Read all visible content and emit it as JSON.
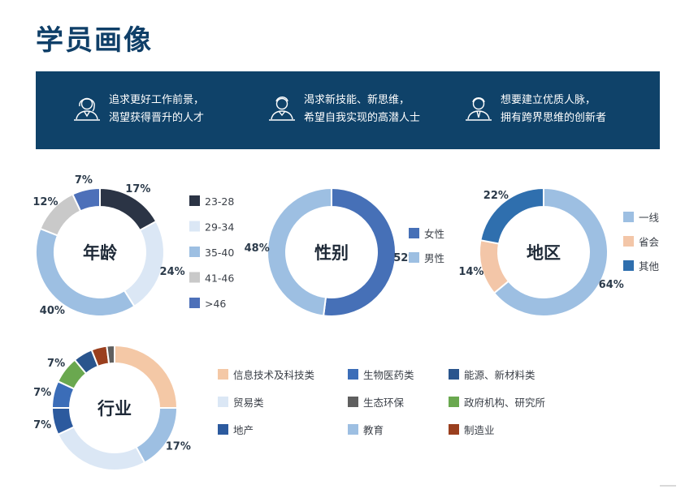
{
  "page": {
    "title": "学员画像"
  },
  "banner": {
    "personas": [
      {
        "icon": "woman-avatar-icon",
        "lines": [
          "追求更好工作前景，",
          "渴望获得晋升的人才"
        ]
      },
      {
        "icon": "man-avatar-icon",
        "lines": [
          "渴求新技能、新思维，",
          "希望自我实现的高潜人士"
        ]
      },
      {
        "icon": "professional-avatar-icon",
        "lines": [
          "想要建立优质人脉，",
          "拥有跨界思维的创新者"
        ]
      }
    ]
  },
  "chart_data": [
    {
      "type": "pie",
      "title": "年龄",
      "categories": [
        "23-28",
        "29-34",
        "35-40",
        "41-46",
        ">46"
      ],
      "values": [
        17,
        24,
        40,
        12,
        7
      ],
      "labels": [
        "17%",
        "24%",
        "40%",
        "12%",
        "7%"
      ],
      "colors": [
        "#2b3445",
        "#dbe7f5",
        "#9dbfe2",
        "#c9c9c9",
        "#4d70b9"
      ],
      "legend": "right"
    },
    {
      "type": "pie",
      "title": "性别",
      "categories": [
        "女性",
        "男性"
      ],
      "values": [
        52,
        48
      ],
      "labels": [
        "52%",
        "48%"
      ],
      "colors": [
        "#4670b7",
        "#9dbfe2"
      ],
      "legend": "right"
    },
    {
      "type": "pie",
      "title": "地区",
      "categories": [
        "一线",
        "省会",
        "其他"
      ],
      "values": [
        64,
        14,
        22
      ],
      "labels": [
        "64%",
        "14%",
        "22%"
      ],
      "colors": [
        "#9dbfe2",
        "#f3c6a8",
        "#2f6fae"
      ],
      "legend": "right"
    },
    {
      "type": "pie",
      "title": "行业",
      "categories": [
        "信息技术及科技类",
        "教育",
        "贸易类",
        "地产",
        "生物医药类",
        "政府机构、研究所",
        "能源、新材料类",
        "制造业",
        "生态环保"
      ],
      "values": [
        25,
        17,
        26,
        7,
        7,
        7,
        5,
        4,
        2
      ],
      "labels": [
        "",
        "17%",
        "",
        "7%",
        "7%",
        "7%",
        "",
        "",
        ""
      ],
      "colors": [
        "#f4c8a6",
        "#9dbfe2",
        "#dbe7f5",
        "#2c5a9e",
        "#3b6db8",
        "#6aa84f",
        "#2a558d",
        "#9a3f1e",
        "#5f5f5f"
      ],
      "legend_order": [
        0,
        4,
        6,
        2,
        8,
        5,
        3,
        1,
        7
      ],
      "legend": "right, 3 columns"
    }
  ]
}
